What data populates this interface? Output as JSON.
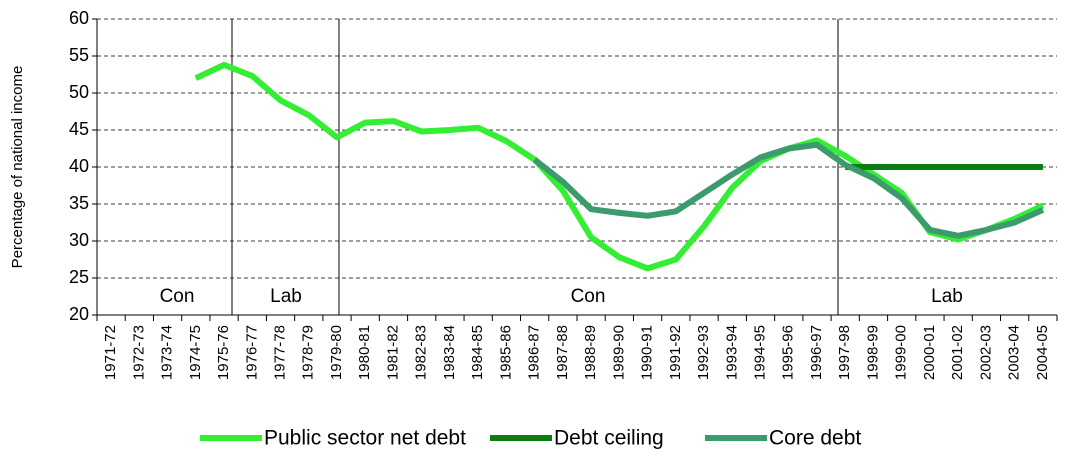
{
  "chart_data": {
    "type": "line",
    "y_label": "Percentage of national income",
    "categories": [
      "1971-72",
      "1972-73",
      "1973-74",
      "1974-75",
      "1975-76",
      "1976-77",
      "1977-78",
      "1978-79",
      "1979-80",
      "1980-81",
      "1981-82",
      "1982-83",
      "1983-84",
      "1984-85",
      "1985-86",
      "1986-87",
      "1987-88",
      "1988-89",
      "1989-90",
      "1990-91",
      "1991-92",
      "1992-93",
      "1993-94",
      "1994-95",
      "1995-96",
      "1996-97",
      "1997-98",
      "1998-99",
      "1999-00",
      "2000-01",
      "2001-02",
      "2002-03",
      "2003-04",
      "2004-05"
    ],
    "series": [
      {
        "name": "Public sector net debt",
        "color": "#33ee33",
        "values": [
          null,
          null,
          null,
          52,
          53.8,
          52.3,
          49,
          47,
          44,
          46,
          46.2,
          44.8,
          45,
          45.3,
          43.5,
          41,
          36.8,
          30.5,
          27.8,
          26.3,
          27.5,
          32,
          37.2,
          40.8,
          42.5,
          43.6,
          41.5,
          39,
          36.5,
          31.2,
          30.2,
          31.5,
          33,
          34.8
        ]
      },
      {
        "name": "Debt ceiling",
        "color": "#0b7d12",
        "values": [
          null,
          null,
          null,
          null,
          null,
          null,
          null,
          null,
          null,
          null,
          null,
          null,
          null,
          null,
          null,
          null,
          null,
          null,
          null,
          null,
          null,
          null,
          null,
          null,
          null,
          null,
          40,
          40,
          40,
          40,
          40,
          40,
          40,
          40
        ]
      },
      {
        "name": "Core debt",
        "color": "#3c9b6c",
        "values": [
          null,
          null,
          null,
          null,
          null,
          null,
          null,
          null,
          null,
          null,
          null,
          null,
          null,
          null,
          null,
          41,
          38,
          34.3,
          33.8,
          33.4,
          34,
          36.5,
          39,
          41.3,
          42.5,
          43,
          40.3,
          38.5,
          35.8,
          31.5,
          30.7,
          31.5,
          32.5,
          34.2
        ]
      }
    ],
    "periods": [
      "Con",
      "Lab",
      "Con",
      "Lab"
    ],
    "ylim": [
      20,
      60
    ],
    "yticks": [
      20,
      25,
      30,
      35,
      40,
      45,
      50,
      55,
      60
    ],
    "grid": true
  }
}
